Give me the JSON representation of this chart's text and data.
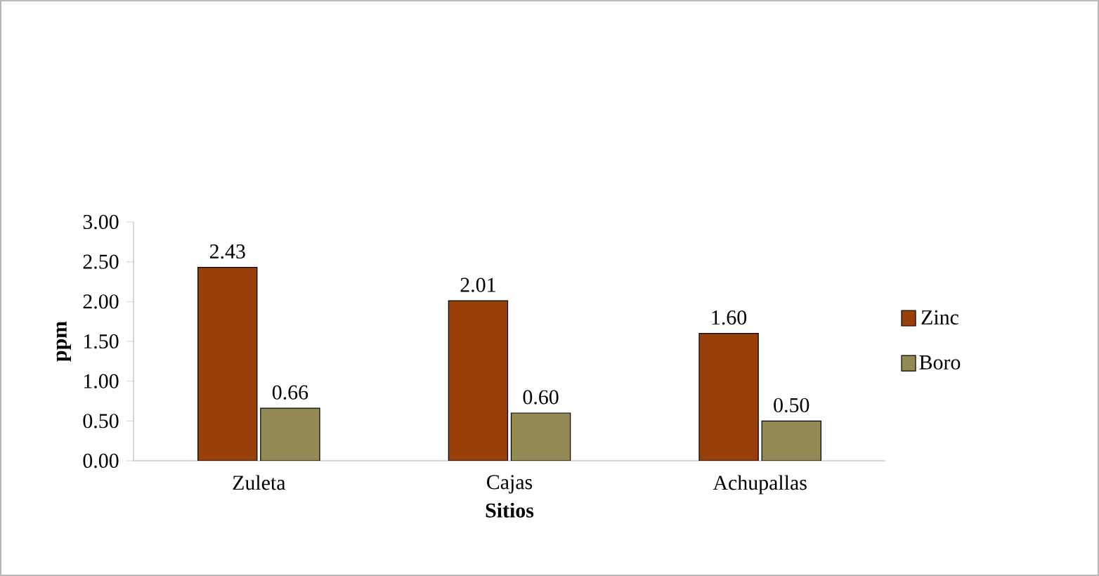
{
  "chart_data": {
    "type": "bar",
    "xlabel": "Sitios",
    "ylabel": "ppm",
    "categories": [
      "Zuleta",
      "Cajas",
      "Achupallas"
    ],
    "series": [
      {
        "name": "Zinc",
        "color": "#993f0a",
        "values": [
          2.43,
          2.01,
          1.6
        ],
        "value_labels": [
          "2.43",
          "2.01",
          "1.60"
        ]
      },
      {
        "name": "Boro",
        "color": "#948a54",
        "values": [
          0.66,
          0.6,
          0.5
        ],
        "value_labels": [
          "0.66",
          "0.60",
          "0.50"
        ]
      }
    ],
    "ylim": [
      0,
      3
    ],
    "yticks": [
      {
        "value": 0,
        "label": "0.00"
      },
      {
        "value": 0.5,
        "label": "0.50"
      },
      {
        "value": 1,
        "label": "1.00"
      },
      {
        "value": 1.5,
        "label": "1.50"
      },
      {
        "value": 2,
        "label": "2.00"
      },
      {
        "value": 2.5,
        "label": "2.50"
      },
      {
        "value": 3,
        "label": "3.00"
      }
    ],
    "legend": "right",
    "grid": false
  }
}
